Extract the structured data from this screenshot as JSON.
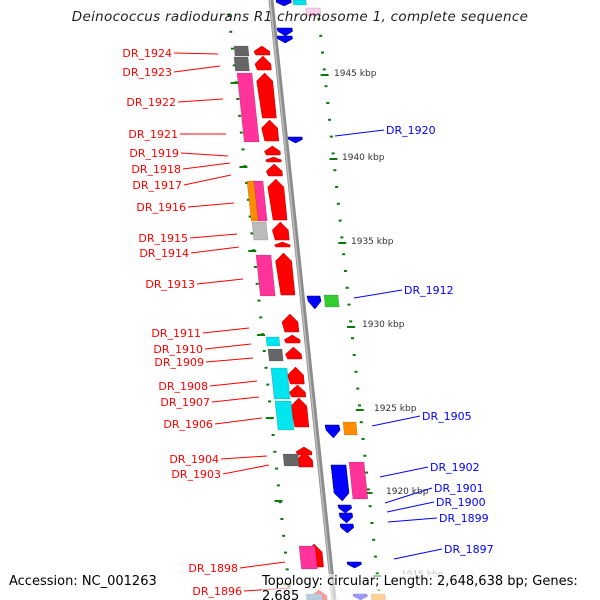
{
  "title": "Deinococcus radiodurans R1 chromosome 1, complete sequence",
  "footer": {
    "accession": "Accession: NC_001263",
    "summary": "Topology: circular; Length: 2,648,638 bp; Genes: 2,685"
  },
  "colors": {
    "forward_label": "#ff0000",
    "reverse_label": "#0000ff",
    "forward_gene": "#ff0000",
    "reverse_gene": "#0000ff",
    "backbone": "#8c8c8c",
    "tick": "#0a7a0a",
    "pink": "#ff3399",
    "gray": "#666666",
    "lightgray": "#bbbbbb",
    "cyan": "#00e5ee",
    "orange": "#ff8c00",
    "green": "#33cc33"
  },
  "forward_labels": [
    "DR_1924",
    "DR_1923",
    "DR_1922",
    "DR_1921",
    "DR_1919",
    "DR_1918",
    "DR_1917",
    "DR_1916",
    "DR_1915",
    "DR_1914",
    "DR_1913",
    "DR_1911",
    "DR_1910",
    "DR_1909",
    "DR_1908",
    "DR_1907",
    "DR_1906",
    "DR_1904",
    "DR_1903",
    "DR_1898",
    "DR_1896"
  ],
  "reverse_labels": [
    "DR_1920",
    "DR_1912",
    "DR_1905",
    "DR_1902",
    "DR_1901",
    "DR_1900",
    "DR_1899",
    "DR_1897"
  ],
  "ruler_labels": [
    "1945 kbp",
    "1940 kbp",
    "1935 kbp",
    "1930 kbp",
    "1925 kbp",
    "1920 kbp",
    "1915 kbp"
  ]
}
